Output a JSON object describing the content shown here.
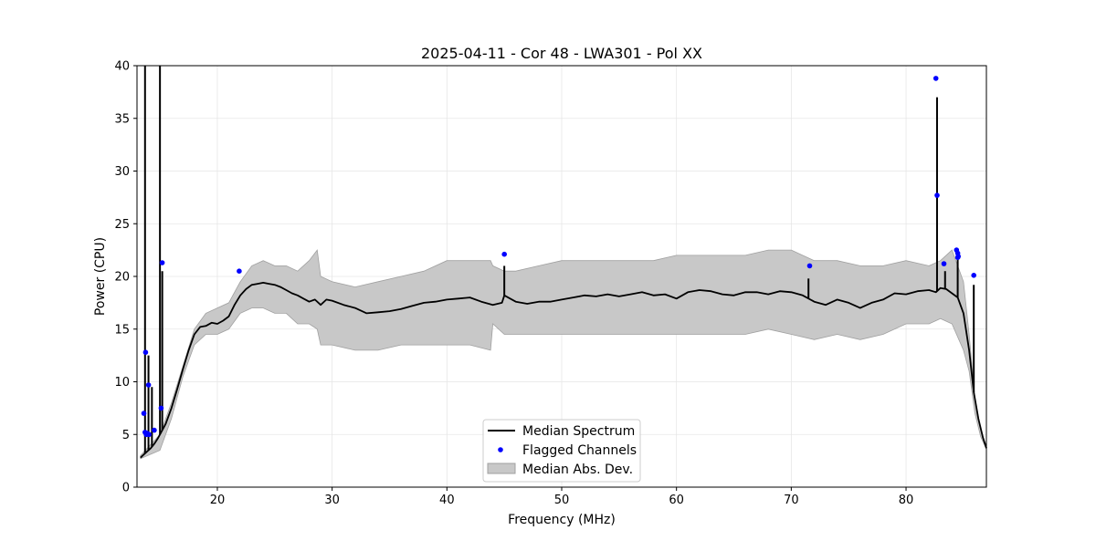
{
  "chart_data": {
    "type": "line",
    "title": "2025-04-11 - Cor 48 - LWA301 - Pol XX",
    "xlabel": "Frequency (MHz)",
    "ylabel": "Power (CPU)",
    "xlim": [
      13.0,
      87.0
    ],
    "ylim": [
      0,
      40
    ],
    "xticks": [
      20,
      30,
      40,
      50,
      60,
      70,
      80
    ],
    "xtick_labels": [
      "20",
      "30",
      "40",
      "50",
      "60",
      "70",
      "80"
    ],
    "yticks": [
      0,
      5,
      10,
      15,
      20,
      25,
      30,
      35,
      40
    ],
    "ytick_labels": [
      "0",
      "5",
      "10",
      "15",
      "20",
      "25",
      "30",
      "35",
      "40"
    ],
    "grid": true,
    "legend": {
      "position": "lower-center",
      "entries": [
        "Median Spectrum",
        "Flagged Channels",
        "Median Abs. Dev."
      ]
    },
    "colors": {
      "median": "#000000",
      "flagged": "#0000ff",
      "band_fill": "#c8c8c8",
      "band_edge": "#a0a0a0",
      "grid": "#e6e6e6"
    },
    "series": [
      {
        "name": "Median Spectrum",
        "kind": "line",
        "x": [
          13.3,
          13.6,
          13.9,
          14.2,
          14.5,
          14.8,
          15.1,
          15.5,
          16.0,
          16.5,
          17.0,
          17.5,
          18.0,
          18.5,
          19.0,
          19.5,
          20.0,
          20.5,
          21.0,
          21.5,
          22.0,
          22.5,
          23.0,
          23.5,
          24.0,
          24.5,
          25.0,
          25.5,
          26.0,
          26.5,
          27.0,
          27.5,
          28.0,
          28.5,
          29.0,
          29.5,
          30.0,
          31.0,
          32.0,
          33.0,
          34.0,
          35.0,
          36.0,
          37.0,
          38.0,
          39.0,
          40.0,
          41.0,
          42.0,
          43.0,
          44.0,
          44.8,
          45.0,
          46.0,
          47.0,
          48.0,
          49.0,
          50.0,
          51.0,
          52.0,
          53.0,
          54.0,
          55.0,
          56.0,
          57.0,
          58.0,
          59.0,
          60.0,
          61.0,
          62.0,
          63.0,
          64.0,
          65.0,
          66.0,
          67.0,
          68.0,
          69.0,
          70.0,
          71.0,
          72.0,
          73.0,
          74.0,
          75.0,
          76.0,
          77.0,
          78.0,
          79.0,
          80.0,
          81.0,
          82.0,
          82.6,
          83.0,
          83.5,
          84.0,
          84.5,
          85.0,
          85.5,
          85.9,
          86.3,
          86.7,
          87.0
        ],
        "y": [
          2.8,
          3.1,
          3.4,
          3.7,
          4.1,
          4.6,
          5.2,
          6.0,
          7.5,
          9.3,
          11.2,
          13.0,
          14.5,
          15.2,
          15.3,
          15.6,
          15.5,
          15.8,
          16.2,
          17.3,
          18.2,
          18.8,
          19.2,
          19.3,
          19.4,
          19.3,
          19.2,
          19.0,
          18.7,
          18.4,
          18.2,
          17.9,
          17.6,
          17.8,
          17.3,
          17.8,
          17.7,
          17.3,
          17.0,
          16.5,
          16.6,
          16.7,
          16.9,
          17.2,
          17.5,
          17.6,
          17.8,
          17.9,
          18.0,
          17.6,
          17.3,
          17.5,
          18.2,
          17.6,
          17.4,
          17.6,
          17.6,
          17.8,
          18.0,
          18.2,
          18.1,
          18.3,
          18.1,
          18.3,
          18.5,
          18.2,
          18.3,
          17.9,
          18.5,
          18.7,
          18.6,
          18.3,
          18.2,
          18.5,
          18.5,
          18.3,
          18.6,
          18.5,
          18.2,
          17.6,
          17.3,
          17.8,
          17.5,
          17.0,
          17.5,
          17.8,
          18.4,
          18.3,
          18.6,
          18.7,
          18.5,
          18.9,
          18.8,
          18.4,
          18.0,
          16.5,
          13.0,
          9.0,
          6.5,
          4.7,
          3.7
        ]
      },
      {
        "name": "Median Spectrum spikes",
        "kind": "spikes",
        "x": [
          13.7,
          14.0,
          14.3,
          15.0,
          15.2,
          45.0,
          71.5,
          82.7,
          83.4,
          84.5,
          85.9
        ],
        "y": [
          40.0,
          12.5,
          9.5,
          40.0,
          20.5,
          21.0,
          19.8,
          37.0,
          20.5,
          22.0,
          19.2
        ]
      },
      {
        "name": "Flagged Channels",
        "kind": "scatter",
        "x": [
          13.6,
          13.7,
          13.75,
          13.8,
          13.9,
          14.0,
          14.05,
          14.5,
          15.1,
          15.2,
          21.9,
          45.0,
          71.6,
          82.6,
          82.7,
          83.3,
          84.4,
          84.5,
          84.5,
          84.55,
          85.9
        ],
        "y": [
          7.0,
          5.2,
          12.8,
          5.0,
          5.1,
          9.7,
          5.0,
          5.4,
          7.5,
          21.3,
          20.5,
          22.1,
          21.0,
          38.8,
          27.7,
          21.2,
          22.5,
          22.2,
          21.8,
          21.9,
          20.1
        ]
      },
      {
        "name": "Median Abs. Dev.",
        "kind": "band",
        "x": [
          13.3,
          15.0,
          16.0,
          17.0,
          18.0,
          19.0,
          20.0,
          21.0,
          22.0,
          23.0,
          24.0,
          25.0,
          26.0,
          27.0,
          28.0,
          28.7,
          29.0,
          30.0,
          32.0,
          34.0,
          36.0,
          38.0,
          40.0,
          42.0,
          43.8,
          44.0,
          45.0,
          46.0,
          48.0,
          50.0,
          52.0,
          54.0,
          56.0,
          58.0,
          60.0,
          62.0,
          64.0,
          66.0,
          68.0,
          70.0,
          72.0,
          74.0,
          76.0,
          78.0,
          80.0,
          82.0,
          83.0,
          84.0,
          85.0,
          85.5,
          86.0,
          86.5,
          87.0
        ],
        "upper": [
          3.0,
          5.0,
          8.0,
          11.5,
          15.0,
          16.5,
          17.0,
          17.5,
          19.5,
          21.0,
          21.5,
          21.0,
          21.0,
          20.5,
          21.5,
          22.5,
          20.0,
          19.5,
          19.0,
          19.5,
          20.0,
          20.5,
          21.5,
          21.5,
          21.5,
          21.0,
          20.5,
          20.5,
          21.0,
          21.5,
          21.5,
          21.5,
          21.5,
          21.5,
          22.0,
          22.0,
          22.0,
          22.0,
          22.5,
          22.5,
          21.5,
          21.5,
          21.0,
          21.0,
          21.5,
          21.0,
          21.5,
          22.5,
          19.5,
          14.5,
          8.5,
          5.5,
          3.8
        ],
        "lower": [
          2.7,
          3.5,
          6.5,
          10.5,
          13.5,
          14.5,
          14.5,
          15.0,
          16.5,
          17.0,
          17.0,
          16.5,
          16.5,
          15.5,
          15.5,
          15.0,
          13.5,
          13.5,
          13.0,
          13.0,
          13.5,
          13.5,
          13.5,
          13.5,
          13.0,
          15.5,
          14.5,
          14.5,
          14.5,
          14.5,
          14.5,
          14.5,
          14.5,
          14.5,
          14.5,
          14.5,
          14.5,
          14.5,
          15.0,
          14.5,
          14.0,
          14.5,
          14.0,
          14.5,
          15.5,
          15.5,
          16.0,
          15.5,
          13.0,
          11.0,
          7.0,
          4.8,
          3.6
        ]
      }
    ]
  }
}
